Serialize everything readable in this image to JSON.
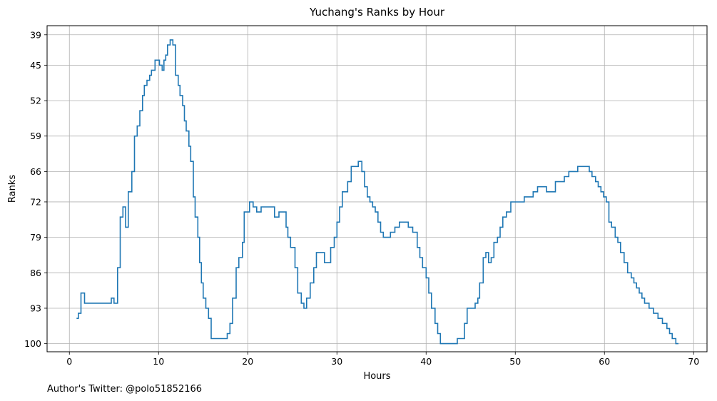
{
  "chart_data": {
    "type": "line",
    "style": "step",
    "title": "Yuchang's Ranks by Hour",
    "xlabel": "Hours",
    "ylabel": "Ranks",
    "xlim": [
      -2.5,
      71.5
    ],
    "ylim": [
      101.6,
      37.2
    ],
    "x_ticks": [
      0,
      10,
      20,
      30,
      40,
      50,
      60,
      70
    ],
    "y_ticks": [
      39,
      45,
      52,
      59,
      66,
      72,
      79,
      86,
      93,
      100
    ],
    "y_inverted": true,
    "grid": true,
    "line_color": "#1f77b4",
    "series": [
      {
        "points": [
          [
            0.8,
            95
          ],
          [
            1.0,
            94
          ],
          [
            1.3,
            90
          ],
          [
            1.7,
            92
          ],
          [
            2.5,
            92
          ],
          [
            3.5,
            92
          ],
          [
            4.7,
            91
          ],
          [
            5.0,
            92
          ],
          [
            5.4,
            85
          ],
          [
            5.7,
            75
          ],
          [
            6.0,
            73
          ],
          [
            6.3,
            77
          ],
          [
            6.6,
            70
          ],
          [
            7.0,
            66
          ],
          [
            7.3,
            59
          ],
          [
            7.6,
            57
          ],
          [
            7.9,
            54
          ],
          [
            8.2,
            51
          ],
          [
            8.4,
            49
          ],
          [
            8.7,
            48
          ],
          [
            9.0,
            47
          ],
          [
            9.2,
            46
          ],
          [
            9.6,
            44
          ],
          [
            10.1,
            45
          ],
          [
            10.4,
            46
          ],
          [
            10.6,
            44
          ],
          [
            10.8,
            43
          ],
          [
            11.0,
            41
          ],
          [
            11.3,
            40
          ],
          [
            11.6,
            41
          ],
          [
            11.9,
            47
          ],
          [
            12.2,
            49
          ],
          [
            12.4,
            51
          ],
          [
            12.7,
            53
          ],
          [
            12.9,
            56
          ],
          [
            13.1,
            58
          ],
          [
            13.4,
            61
          ],
          [
            13.6,
            64
          ],
          [
            13.9,
            71
          ],
          [
            14.1,
            75
          ],
          [
            14.4,
            79
          ],
          [
            14.6,
            84
          ],
          [
            14.8,
            88
          ],
          [
            15.0,
            91
          ],
          [
            15.3,
            93
          ],
          [
            15.6,
            95
          ],
          [
            15.9,
            99
          ],
          [
            16.5,
            99
          ],
          [
            17.7,
            98
          ],
          [
            18.0,
            96
          ],
          [
            18.3,
            91
          ],
          [
            18.7,
            85
          ],
          [
            19.0,
            83
          ],
          [
            19.4,
            80
          ],
          [
            19.6,
            74
          ],
          [
            20.0,
            74
          ],
          [
            20.2,
            72
          ],
          [
            20.6,
            73
          ],
          [
            21.0,
            74
          ],
          [
            21.5,
            73
          ],
          [
            22.0,
            73
          ],
          [
            22.5,
            73
          ],
          [
            23.0,
            75
          ],
          [
            23.5,
            74
          ],
          [
            23.8,
            74
          ],
          [
            24.3,
            77
          ],
          [
            24.5,
            79
          ],
          [
            24.8,
            81
          ],
          [
            25.3,
            85
          ],
          [
            25.6,
            90
          ],
          [
            26.0,
            92
          ],
          [
            26.3,
            93
          ],
          [
            26.6,
            91
          ],
          [
            27.0,
            88
          ],
          [
            27.4,
            85
          ],
          [
            27.7,
            82
          ],
          [
            28.2,
            82
          ],
          [
            28.6,
            84
          ],
          [
            29.0,
            84
          ],
          [
            29.3,
            81
          ],
          [
            29.7,
            79
          ],
          [
            30.0,
            76
          ],
          [
            30.3,
            73
          ],
          [
            30.6,
            70
          ],
          [
            30.9,
            70
          ],
          [
            31.2,
            68
          ],
          [
            31.6,
            65
          ],
          [
            32.0,
            65
          ],
          [
            32.4,
            64
          ],
          [
            32.8,
            66
          ],
          [
            33.1,
            69
          ],
          [
            33.4,
            71
          ],
          [
            33.7,
            72
          ],
          [
            34.0,
            73
          ],
          [
            34.3,
            74
          ],
          [
            34.6,
            76
          ],
          [
            34.9,
            78
          ],
          [
            35.2,
            79
          ],
          [
            35.5,
            79
          ],
          [
            36.0,
            78
          ],
          [
            36.5,
            77
          ],
          [
            37.0,
            76
          ],
          [
            37.5,
            76
          ],
          [
            38.0,
            77
          ],
          [
            38.5,
            78
          ],
          [
            39.0,
            81
          ],
          [
            39.3,
            83
          ],
          [
            39.6,
            85
          ],
          [
            40.0,
            87
          ],
          [
            40.3,
            90
          ],
          [
            40.6,
            93
          ],
          [
            41.0,
            96
          ],
          [
            41.3,
            98
          ],
          [
            41.6,
            100
          ],
          [
            42.0,
            100
          ],
          [
            43.0,
            100
          ],
          [
            43.5,
            99
          ],
          [
            44.0,
            99
          ],
          [
            44.3,
            96
          ],
          [
            44.6,
            93
          ],
          [
            45.0,
            93
          ],
          [
            45.5,
            92
          ],
          [
            45.8,
            91
          ],
          [
            46.0,
            88
          ],
          [
            46.4,
            83
          ],
          [
            46.7,
            82
          ],
          [
            47.0,
            84
          ],
          [
            47.3,
            83
          ],
          [
            47.6,
            80
          ],
          [
            48.0,
            79
          ],
          [
            48.3,
            77
          ],
          [
            48.6,
            75
          ],
          [
            49.0,
            74
          ],
          [
            49.5,
            72
          ],
          [
            50.0,
            72
          ],
          [
            50.5,
            72
          ],
          [
            51.0,
            71
          ],
          [
            51.5,
            71
          ],
          [
            52.0,
            70
          ],
          [
            52.5,
            69
          ],
          [
            53.0,
            69
          ],
          [
            53.5,
            70
          ],
          [
            54.0,
            70
          ],
          [
            54.5,
            68
          ],
          [
            55.0,
            68
          ],
          [
            55.5,
            67
          ],
          [
            56.0,
            66
          ],
          [
            56.5,
            66
          ],
          [
            57.0,
            65
          ],
          [
            57.5,
            65
          ],
          [
            58.0,
            65
          ],
          [
            58.3,
            66
          ],
          [
            58.6,
            67
          ],
          [
            59.0,
            68
          ],
          [
            59.3,
            69
          ],
          [
            59.6,
            70
          ],
          [
            59.9,
            71
          ],
          [
            60.2,
            72
          ],
          [
            60.5,
            76
          ],
          [
            60.8,
            77
          ],
          [
            61.2,
            79
          ],
          [
            61.5,
            80
          ],
          [
            61.8,
            82
          ],
          [
            62.2,
            84
          ],
          [
            62.6,
            86
          ],
          [
            63.0,
            87
          ],
          [
            63.3,
            88
          ],
          [
            63.6,
            89
          ],
          [
            63.9,
            90
          ],
          [
            64.2,
            91
          ],
          [
            64.5,
            92
          ],
          [
            65.0,
            93
          ],
          [
            65.5,
            94
          ],
          [
            66.0,
            95
          ],
          [
            66.5,
            96
          ],
          [
            67.0,
            97
          ],
          [
            67.3,
            98
          ],
          [
            67.6,
            99
          ],
          [
            68.0,
            100
          ],
          [
            68.3,
            100
          ]
        ]
      }
    ]
  },
  "footer": {
    "author_note": "Author's Twitter: @polo51852166"
  }
}
